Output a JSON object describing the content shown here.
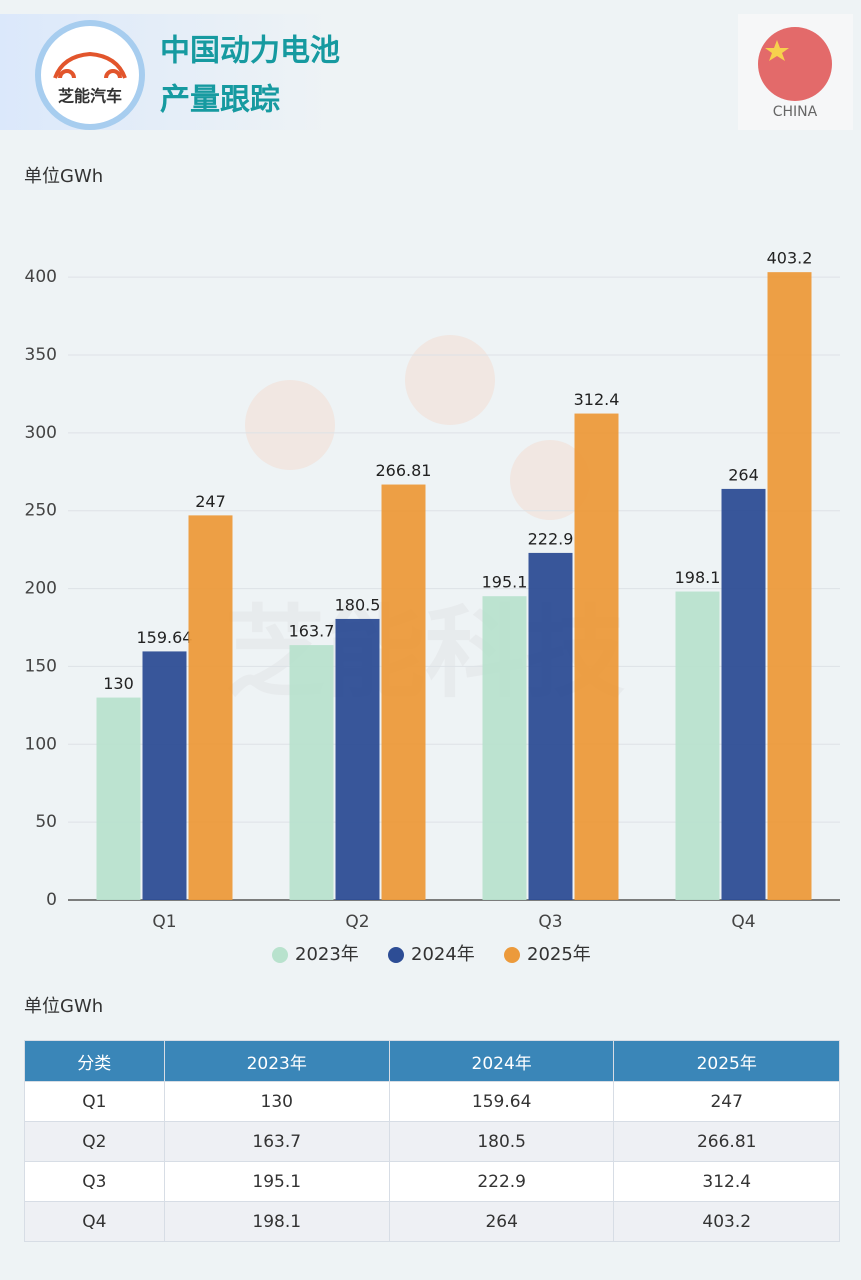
{
  "header": {
    "logo_text": "芝能汽车",
    "title_line1": "中国动力电池",
    "title_line2": "产量跟踪",
    "flag_label": "CHINA"
  },
  "watermark": "芝能科技",
  "chart_data": {
    "type": "bar",
    "unit_label": "单位GWh",
    "categories": [
      "Q1",
      "Q2",
      "Q3",
      "Q4"
    ],
    "series": [
      {
        "name": "2023年",
        "color": "#b8e2cd",
        "values": [
          130,
          163.7,
          195.1,
          198.1
        ]
      },
      {
        "name": "2024年",
        "color": "#2d4d95",
        "values": [
          159.64,
          180.5,
          222.9,
          264
        ]
      },
      {
        "name": "2025年",
        "color": "#ec9a3b",
        "values": [
          247,
          266.81,
          312.4,
          403.2
        ]
      }
    ],
    "ylim": [
      0,
      420
    ],
    "yticks": [
      0,
      50,
      100,
      150,
      200,
      250,
      300,
      350,
      400
    ],
    "grid": true,
    "legend": "bottom"
  },
  "table": {
    "unit_label": "单位GWh",
    "header": [
      "分类",
      "2023年",
      "2024年",
      "2025年"
    ],
    "rows": [
      [
        "Q1",
        130,
        159.64,
        247
      ],
      [
        "Q2",
        163.7,
        180.5,
        266.81
      ],
      [
        "Q3",
        195.1,
        222.9,
        312.4
      ],
      [
        "Q4",
        198.1,
        264,
        403.2
      ]
    ]
  }
}
